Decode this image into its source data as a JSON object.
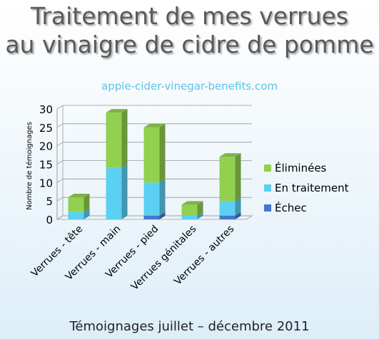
{
  "title": {
    "line1": "Traitement de mes verrues",
    "line2": "au vinaigre de cidre de pomme"
  },
  "watermark": "apple-cider-vinegar-benefits.com",
  "caption": "Témoignages juillet – décembre 2011",
  "colors": {
    "Éliminées": "#92d050",
    "En traitement": "#5bd0f2",
    "Échec": "#4477cc"
  },
  "chart_data": {
    "type": "bar",
    "stacked": true,
    "three_d": true,
    "categories": [
      "Verrues - tête",
      "Verrues - main",
      "Verrues - pied",
      "Verrues génitales",
      "Verrues - autres"
    ],
    "series": [
      {
        "name": "Échec",
        "values": [
          0,
          0,
          1,
          0,
          1
        ]
      },
      {
        "name": "En traitement",
        "values": [
          2,
          14,
          9,
          1,
          4
        ]
      },
      {
        "name": "Éliminées",
        "values": [
          4,
          15,
          15,
          3,
          12
        ]
      }
    ],
    "ylabel": "Nombre de témoignages",
    "ylim": [
      0,
      30
    ],
    "yticks": [
      0,
      5,
      10,
      15,
      20,
      25,
      30
    ],
    "grid": true,
    "legend_position": "right"
  }
}
